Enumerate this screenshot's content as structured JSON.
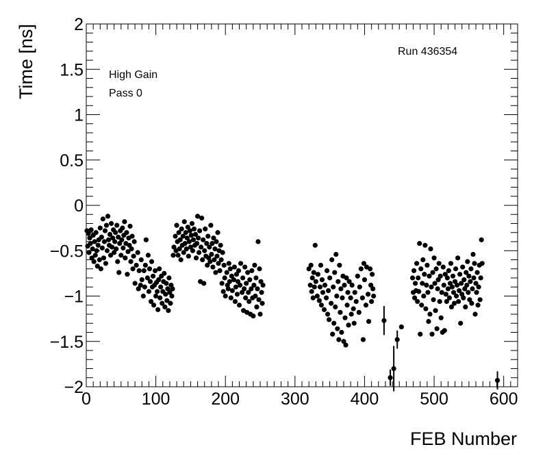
{
  "chart_data": {
    "type": "scatter",
    "title": "",
    "xlabel": "FEB Number",
    "ylabel": "Time [ns]",
    "xlim": [
      0,
      620
    ],
    "ylim": [
      -2,
      2
    ],
    "x_ticks": [
      0,
      100,
      200,
      300,
      400,
      500,
      600
    ],
    "x_tick_labels": [
      "0",
      "100",
      "200",
      "300",
      "400",
      "500",
      "600"
    ],
    "y_ticks": [
      -2,
      -1.5,
      -1,
      -0.5,
      0,
      0.5,
      1,
      1.5,
      2
    ],
    "y_tick_labels": [
      "−2",
      "−1.5",
      "−1",
      "−0.5",
      "0",
      "0.5",
      "1",
      "1.5",
      "2"
    ],
    "grid": false,
    "marker_color": "#000000",
    "annotations": {
      "gain": "High Gain",
      "pass": "Pass 0",
      "run": "Run 436354"
    },
    "error_bars": [
      {
        "x": 428,
        "y": -1.27,
        "err": 0.16
      },
      {
        "x": 437,
        "y": -1.9,
        "err": 0.09
      },
      {
        "x": 442,
        "y": -1.8,
        "err": 0.25
      },
      {
        "x": 447,
        "y": -1.48,
        "err": 0.1
      },
      {
        "x": 591,
        "y": -1.93,
        "err": 0.1
      }
    ],
    "points": [
      [
        1,
        -0.28
      ],
      [
        2,
        -0.45
      ],
      [
        3,
        -0.31
      ],
      [
        4,
        -0.52
      ],
      [
        5,
        -0.36
      ],
      [
        6,
        -0.42
      ],
      [
        7,
        -0.27
      ],
      [
        8,
        -0.58
      ],
      [
        9,
        -0.48
      ],
      [
        10,
        -0.33
      ],
      [
        11,
        -0.62
      ],
      [
        12,
        -0.4
      ],
      [
        13,
        -0.55
      ],
      [
        14,
        -0.3
      ],
      [
        15,
        -0.5
      ],
      [
        16,
        -0.67
      ],
      [
        17,
        -0.44
      ],
      [
        18,
        -0.38
      ],
      [
        19,
        -0.6
      ],
      [
        20,
        -0.25
      ],
      [
        21,
        -0.7
      ],
      [
        22,
        -0.35
      ],
      [
        23,
        -0.47
      ],
      [
        24,
        -0.15
      ],
      [
        25,
        -0.58
      ],
      [
        26,
        -0.4
      ],
      [
        27,
        -0.28
      ],
      [
        28,
        -0.64
      ],
      [
        29,
        -0.22
      ],
      [
        30,
        -0.5
      ],
      [
        31,
        -0.12
      ],
      [
        32,
        -0.38
      ],
      [
        33,
        -0.44
      ],
      [
        34,
        -0.32
      ],
      [
        35,
        -0.55
      ],
      [
        36,
        -0.2
      ],
      [
        37,
        -0.46
      ],
      [
        38,
        -0.36
      ],
      [
        39,
        -0.27
      ],
      [
        40,
        -0.52
      ],
      [
        41,
        -0.4
      ],
      [
        42,
        -0.3
      ],
      [
        43,
        -0.48
      ],
      [
        44,
        -0.22
      ],
      [
        45,
        -0.62
      ],
      [
        46,
        -0.35
      ],
      [
        47,
        -0.74
      ],
      [
        48,
        -0.42
      ],
      [
        49,
        -0.28
      ],
      [
        50,
        -0.55
      ],
      [
        51,
        -0.38
      ],
      [
        52,
        -0.25
      ],
      [
        53,
        -0.47
      ],
      [
        54,
        -0.33
      ],
      [
        55,
        -0.18
      ],
      [
        56,
        -0.58
      ],
      [
        57,
        -0.42
      ],
      [
        58,
        -0.3
      ],
      [
        59,
        -0.76
      ],
      [
        60,
        -0.51
      ],
      [
        61,
        -0.36
      ],
      [
        62,
        -0.44
      ],
      [
        63,
        -0.23
      ],
      [
        64,
        -0.62
      ],
      [
        65,
        -0.48
      ],
      [
        66,
        -0.34
      ],
      [
        67,
        -0.7
      ],
      [
        68,
        -0.56
      ],
      [
        69,
        -0.4
      ],
      [
        70,
        -0.86
      ],
      [
        72,
        -0.66
      ],
      [
        74,
        -0.52
      ],
      [
        75,
        -0.92
      ],
      [
        76,
        -0.72
      ],
      [
        78,
        -0.88
      ],
      [
        79,
        -0.6
      ],
      [
        80,
        -0.82
      ],
      [
        82,
        -1.0
      ],
      [
        83,
        -0.72
      ],
      [
        84,
        -0.9
      ],
      [
        85,
        -0.66
      ],
      [
        86,
        -0.38
      ],
      [
        88,
        -0.8
      ],
      [
        89,
        -0.55
      ],
      [
        90,
        -0.95
      ],
      [
        91,
        -0.7
      ],
      [
        92,
        -0.84
      ],
      [
        93,
        -1.06
      ],
      [
        94,
        -0.62
      ],
      [
        95,
        -0.9
      ],
      [
        96,
        -0.78
      ],
      [
        97,
        -1.1
      ],
      [
        98,
        -0.88
      ],
      [
        99,
        -0.72
      ],
      [
        100,
        -1.0
      ],
      [
        101,
        -0.85
      ],
      [
        102,
        -0.95
      ],
      [
        103,
        -1.15
      ],
      [
        104,
        -0.82
      ],
      [
        105,
        -0.7
      ],
      [
        106,
        -1.02
      ],
      [
        107,
        -0.9
      ],
      [
        108,
        -0.78
      ],
      [
        109,
        -1.08
      ],
      [
        110,
        -0.95
      ],
      [
        111,
        -0.84
      ],
      [
        112,
        -0.75
      ],
      [
        113,
        -1.12
      ],
      [
        114,
        -0.98
      ],
      [
        115,
        -0.86
      ],
      [
        116,
        -1.05
      ],
      [
        117,
        -0.92
      ],
      [
        118,
        -1.16
      ],
      [
        119,
        -0.8
      ],
      [
        120,
        -0.96
      ],
      [
        121,
        -1.08
      ],
      [
        122,
        -0.88
      ],
      [
        123,
        -1.0
      ],
      [
        124,
        -0.92
      ],
      [
        125,
        -0.55
      ],
      [
        126,
        -0.46
      ],
      [
        128,
        -0.34
      ],
      [
        129,
        -0.5
      ],
      [
        130,
        -0.22
      ],
      [
        131,
        -0.4
      ],
      [
        132,
        -0.55
      ],
      [
        133,
        -0.3
      ],
      [
        134,
        -0.48
      ],
      [
        135,
        -0.38
      ],
      [
        136,
        -0.6
      ],
      [
        137,
        -0.26
      ],
      [
        138,
        -0.44
      ],
      [
        139,
        -0.34
      ],
      [
        140,
        -0.52
      ],
      [
        141,
        -0.18
      ],
      [
        142,
        -0.42
      ],
      [
        143,
        -0.3
      ],
      [
        144,
        -0.48
      ],
      [
        145,
        -0.36
      ],
      [
        146,
        -0.24
      ],
      [
        147,
        -0.56
      ],
      [
        148,
        -0.4
      ],
      [
        149,
        -0.28
      ],
      [
        150,
        -0.46
      ],
      [
        151,
        -0.33
      ],
      [
        152,
        -0.2
      ],
      [
        153,
        -0.5
      ],
      [
        154,
        -0.38
      ],
      [
        155,
        -0.26
      ],
      [
        156,
        -0.44
      ],
      [
        157,
        -0.32
      ],
      [
        158,
        -0.58
      ],
      [
        159,
        -0.42
      ],
      [
        160,
        -0.12
      ],
      [
        161,
        -0.36
      ],
      [
        162,
        -0.52
      ],
      [
        163,
        -0.28
      ],
      [
        164,
        -0.84
      ],
      [
        165,
        -0.46
      ],
      [
        166,
        -0.14
      ],
      [
        167,
        -0.6
      ],
      [
        168,
        -0.38
      ],
      [
        169,
        -0.86
      ],
      [
        170,
        -0.5
      ],
      [
        171,
        -0.26
      ],
      [
        172,
        -0.56
      ],
      [
        173,
        -0.42
      ],
      [
        174,
        -0.66
      ],
      [
        175,
        -0.34
      ],
      [
        176,
        -0.58
      ],
      [
        177,
        -0.46
      ],
      [
        178,
        -0.62
      ],
      [
        179,
        -0.22
      ],
      [
        180,
        -0.54
      ],
      [
        181,
        -0.42
      ],
      [
        182,
        -0.68
      ],
      [
        183,
        -0.36
      ],
      [
        184,
        -0.6
      ],
      [
        185,
        -0.48
      ],
      [
        186,
        -0.74
      ],
      [
        187,
        -0.4
      ],
      [
        188,
        -0.56
      ],
      [
        189,
        -0.3
      ],
      [
        190,
        -0.64
      ],
      [
        191,
        -0.5
      ],
      [
        192,
        -0.72
      ],
      [
        193,
        -0.44
      ],
      [
        194,
        -0.6
      ],
      [
        195,
        -0.86
      ],
      [
        196,
        -0.52
      ],
      [
        197,
        -0.95
      ],
      [
        198,
        -0.66
      ],
      [
        199,
        -0.8
      ],
      [
        200,
        -1.0
      ],
      [
        202,
        -0.74
      ],
      [
        203,
        -0.88
      ],
      [
        204,
        -0.92
      ],
      [
        205,
        -0.64
      ],
      [
        206,
        -0.84
      ],
      [
        207,
        -0.7
      ],
      [
        208,
        -1.02
      ],
      [
        209,
        -0.78
      ],
      [
        210,
        -0.94
      ],
      [
        212,
        -0.82
      ],
      [
        213,
        -0.68
      ],
      [
        214,
        -1.06
      ],
      [
        215,
        -0.9
      ],
      [
        216,
        -0.76
      ],
      [
        217,
        -0.98
      ],
      [
        218,
        -0.84
      ],
      [
        219,
        -0.72
      ],
      [
        220,
        -1.1
      ],
      [
        221,
        -0.88
      ],
      [
        222,
        -0.64
      ],
      [
        224,
        -0.96
      ],
      [
        225,
        -0.8
      ],
      [
        226,
        -1.16
      ],
      [
        227,
        -0.92
      ],
      [
        228,
        -0.68
      ],
      [
        229,
        -1.02
      ],
      [
        230,
        -0.86
      ],
      [
        231,
        -1.18
      ],
      [
        232,
        -0.74
      ],
      [
        233,
        -0.96
      ],
      [
        234,
        -1.06
      ],
      [
        235,
        -0.82
      ],
      [
        236,
        -1.2
      ],
      [
        237,
        -0.92
      ],
      [
        238,
        -0.72
      ],
      [
        239,
        -1.02
      ],
      [
        240,
        -1.22
      ],
      [
        241,
        -0.88
      ],
      [
        242,
        -0.66
      ],
      [
        243,
        -1.0
      ],
      [
        244,
        -0.8
      ],
      [
        245,
        -1.12
      ],
      [
        246,
        -0.92
      ],
      [
        247,
        -0.4
      ],
      [
        248,
        -1.04
      ],
      [
        249,
        -0.7
      ],
      [
        250,
        -1.2
      ],
      [
        251,
        -0.84
      ],
      [
        252,
        -0.96
      ],
      [
        253,
        -1.08
      ],
      [
        254,
        -0.88
      ],
      [
        320,
        -0.7
      ],
      [
        322,
        -0.88
      ],
      [
        323,
        -0.66
      ],
      [
        324,
        -0.95
      ],
      [
        325,
        -0.8
      ],
      [
        326,
        -1.02
      ],
      [
        327,
        -0.74
      ],
      [
        328,
        -0.9
      ],
      [
        329,
        -0.44
      ],
      [
        330,
        -0.84
      ],
      [
        332,
        -1.0
      ],
      [
        333,
        -0.76
      ],
      [
        335,
        -1.05
      ],
      [
        336,
        -0.9
      ],
      [
        337,
        -0.66
      ],
      [
        338,
        -1.1
      ],
      [
        339,
        -0.82
      ],
      [
        340,
        -0.96
      ],
      [
        342,
        -1.15
      ],
      [
        343,
        -0.88
      ],
      [
        345,
        -1.02
      ],
      [
        346,
        -0.72
      ],
      [
        347,
        -1.2
      ],
      [
        348,
        -0.94
      ],
      [
        349,
        -1.26
      ],
      [
        350,
        -0.8
      ],
      [
        352,
        -1.08
      ],
      [
        353,
        -0.6
      ],
      [
        354,
        -1.42
      ],
      [
        355,
        -0.9
      ],
      [
        356,
        -1.3
      ],
      [
        357,
        -0.74
      ],
      [
        358,
        -1.12
      ],
      [
        359,
        -0.54
      ],
      [
        360,
        -1.0
      ],
      [
        361,
        -1.36
      ],
      [
        362,
        -0.84
      ],
      [
        363,
        -1.48
      ],
      [
        364,
        -0.66
      ],
      [
        365,
        -1.18
      ],
      [
        366,
        -0.92
      ],
      [
        367,
        -1.4
      ],
      [
        368,
        -1.02
      ],
      [
        369,
        -0.78
      ],
      [
        370,
        -1.5
      ],
      [
        371,
        -0.88
      ],
      [
        372,
        -1.24
      ],
      [
        373,
        -1.54
      ],
      [
        374,
        -0.8
      ],
      [
        375,
        -1.1
      ],
      [
        376,
        -0.96
      ],
      [
        377,
        -1.32
      ],
      [
        378,
        -0.84
      ],
      [
        380,
        -1.02
      ],
      [
        381,
        -1.2
      ],
      [
        382,
        -0.88
      ],
      [
        384,
        -1.14
      ],
      [
        385,
        -1.3
      ],
      [
        386,
        -0.96
      ],
      [
        388,
        -1.06
      ],
      [
        390,
        -0.78
      ],
      [
        392,
        -1.18
      ],
      [
        393,
        -0.9
      ],
      [
        395,
        -0.7
      ],
      [
        397,
        -1.02
      ],
      [
        398,
        -1.48
      ],
      [
        399,
        -0.64
      ],
      [
        400,
        -0.82
      ],
      [
        402,
        -1.1
      ],
      [
        403,
        -0.68
      ],
      [
        405,
        -0.98
      ],
      [
        406,
        -1.28
      ],
      [
        408,
        -0.7
      ],
      [
        409,
        -0.88
      ],
      [
        410,
        -1.06
      ],
      [
        411,
        -0.76
      ],
      [
        412,
        -0.92
      ],
      [
        413,
        -1.0
      ],
      [
        428,
        -1.27
      ],
      [
        437,
        -1.9
      ],
      [
        442,
        -1.8
      ],
      [
        447,
        -1.48
      ],
      [
        453,
        -1.34
      ],
      [
        469,
        -0.8
      ],
      [
        470,
        -0.96
      ],
      [
        471,
        -0.72
      ],
      [
        472,
        -1.02
      ],
      [
        473,
        -0.86
      ],
      [
        474,
        -0.94
      ],
      [
        475,
        -0.64
      ],
      [
        476,
        -1.06
      ],
      [
        477,
        -0.8
      ],
      [
        478,
        -0.95
      ],
      [
        479,
        -0.42
      ],
      [
        480,
        -1.42
      ],
      [
        481,
        -0.7
      ],
      [
        482,
        -1.1
      ],
      [
        483,
        -0.86
      ],
      [
        484,
        -0.6
      ],
      [
        485,
        -1.0
      ],
      [
        486,
        -0.76
      ],
      [
        487,
        -0.44
      ],
      [
        488,
        -1.14
      ],
      [
        489,
        -0.88
      ],
      [
        490,
        -0.66
      ],
      [
        491,
        -0.96
      ],
      [
        492,
        -1.28
      ],
      [
        493,
        -0.78
      ],
      [
        494,
        -1.2
      ],
      [
        495,
        -0.48
      ],
      [
        496,
        -0.9
      ],
      [
        497,
        -1.42
      ],
      [
        498,
        -0.74
      ],
      [
        499,
        -1.04
      ],
      [
        500,
        -0.58
      ],
      [
        501,
        -0.86
      ],
      [
        502,
        -1.16
      ],
      [
        503,
        -0.7
      ],
      [
        504,
        -1.36
      ],
      [
        505,
        -0.92
      ],
      [
        506,
        -0.82
      ],
      [
        507,
        -0.64
      ],
      [
        508,
        -1.06
      ],
      [
        509,
        -0.78
      ],
      [
        510,
        -1.24
      ],
      [
        511,
        -0.96
      ],
      [
        512,
        -1.4
      ],
      [
        513,
        -0.68
      ],
      [
        514,
        -0.88
      ],
      [
        515,
        -1.38
      ],
      [
        516,
        -0.76
      ],
      [
        517,
        -0.98
      ],
      [
        518,
        -1.06
      ],
      [
        519,
        -0.8
      ],
      [
        520,
        -0.92
      ],
      [
        521,
        -0.72
      ],
      [
        522,
        -1.02
      ],
      [
        523,
        -0.86
      ],
      [
        524,
        -0.64
      ],
      [
        525,
        -1.12
      ],
      [
        526,
        -0.9
      ],
      [
        527,
        -0.78
      ],
      [
        528,
        -0.96
      ],
      [
        529,
        -1.08
      ],
      [
        530,
        -0.84
      ],
      [
        531,
        -0.7
      ],
      [
        532,
        -1.0
      ],
      [
        533,
        -0.88
      ],
      [
        534,
        -0.58
      ],
      [
        535,
        -1.06
      ],
      [
        536,
        -0.94
      ],
      [
        537,
        -0.76
      ],
      [
        538,
        -1.3
      ],
      [
        539,
        -0.86
      ],
      [
        540,
        -0.98
      ],
      [
        541,
        -0.68
      ],
      [
        542,
        -1.02
      ],
      [
        543,
        -0.82
      ],
      [
        544,
        -0.92
      ],
      [
        545,
        -1.12
      ],
      [
        546,
        -0.74
      ],
      [
        547,
        -0.88
      ],
      [
        548,
        -0.62
      ],
      [
        549,
        -0.96
      ],
      [
        550,
        -0.78
      ],
      [
        551,
        -1.04
      ],
      [
        552,
        -0.84
      ],
      [
        553,
        -0.7
      ],
      [
        554,
        -1.08
      ],
      [
        555,
        -0.92
      ],
      [
        556,
        -0.54
      ],
      [
        557,
        -0.8
      ],
      [
        558,
        -0.64
      ],
      [
        559,
        -1.2
      ],
      [
        560,
        -0.86
      ],
      [
        561,
        -0.96
      ],
      [
        562,
        -0.74
      ],
      [
        563,
        -1.1
      ],
      [
        564,
        -0.9
      ],
      [
        565,
        -0.66
      ],
      [
        566,
        -1.04
      ],
      [
        567,
        -0.8
      ],
      [
        568,
        -0.38
      ],
      [
        569,
        -0.64
      ],
      [
        591,
        -1.93
      ]
    ]
  }
}
